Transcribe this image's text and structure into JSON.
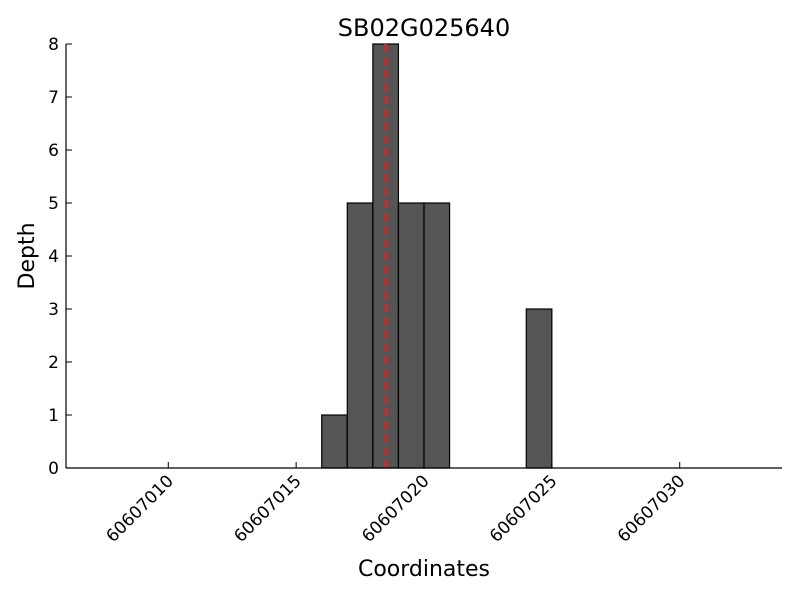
{
  "chart_data": {
    "type": "bar",
    "title": "SB02G025640",
    "xlabel": "Coordinates",
    "ylabel": "Depth",
    "xlim": [
      60607006,
      60607034
    ],
    "ylim": [
      0,
      8
    ],
    "xticks": [
      60607010,
      60607015,
      60607020,
      60607025,
      60607030
    ],
    "yticks": [
      0,
      1,
      2,
      3,
      4,
      5,
      6,
      7,
      8
    ],
    "bars": [
      {
        "x": 60607016,
        "value": 1
      },
      {
        "x": 60607017,
        "value": 5
      },
      {
        "x": 60607018,
        "value": 8
      },
      {
        "x": 60607019,
        "value": 5
      },
      {
        "x": 60607020,
        "value": 5
      },
      {
        "x": 60607024,
        "value": 3
      }
    ],
    "bar_width": 1,
    "bar_color": "#555555",
    "bar_edge_color": "#000000",
    "marker_line": {
      "x": 60607018.5,
      "color": "#d62728",
      "style": "dashed"
    },
    "grid": false
  }
}
